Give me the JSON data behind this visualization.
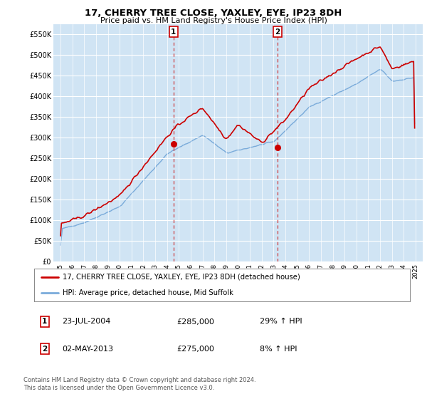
{
  "title": "17, CHERRY TREE CLOSE, YAXLEY, EYE, IP23 8DH",
  "subtitle": "Price paid vs. HM Land Registry's House Price Index (HPI)",
  "legend_line1": "17, CHERRY TREE CLOSE, YAXLEY, EYE, IP23 8DH (detached house)",
  "legend_line2": "HPI: Average price, detached house, Mid Suffolk",
  "sale1_label": "1",
  "sale1_date": "23-JUL-2004",
  "sale1_price": "£285,000",
  "sale1_hpi": "29% ↑ HPI",
  "sale1_year": 2004.55,
  "sale1_value": 285000,
  "sale2_label": "2",
  "sale2_date": "02-MAY-2013",
  "sale2_price": "£275,000",
  "sale2_hpi": "8% ↑ HPI",
  "sale2_year": 2013.33,
  "sale2_value": 275000,
  "ylim": [
    0,
    575000
  ],
  "yticks": [
    0,
    50000,
    100000,
    150000,
    200000,
    250000,
    300000,
    350000,
    400000,
    450000,
    500000,
    550000
  ],
  "ytick_labels": [
    "£0",
    "£50K",
    "£100K",
    "£150K",
    "£200K",
    "£250K",
    "£300K",
    "£350K",
    "£400K",
    "£450K",
    "£500K",
    "£550K"
  ],
  "background_color": "#d0e4f4",
  "line_color_red": "#cc0000",
  "line_color_blue": "#7aabda",
  "footnote1": "Contains HM Land Registry data © Crown copyright and database right 2024.",
  "footnote2": "This data is licensed under the Open Government Licence v3.0."
}
